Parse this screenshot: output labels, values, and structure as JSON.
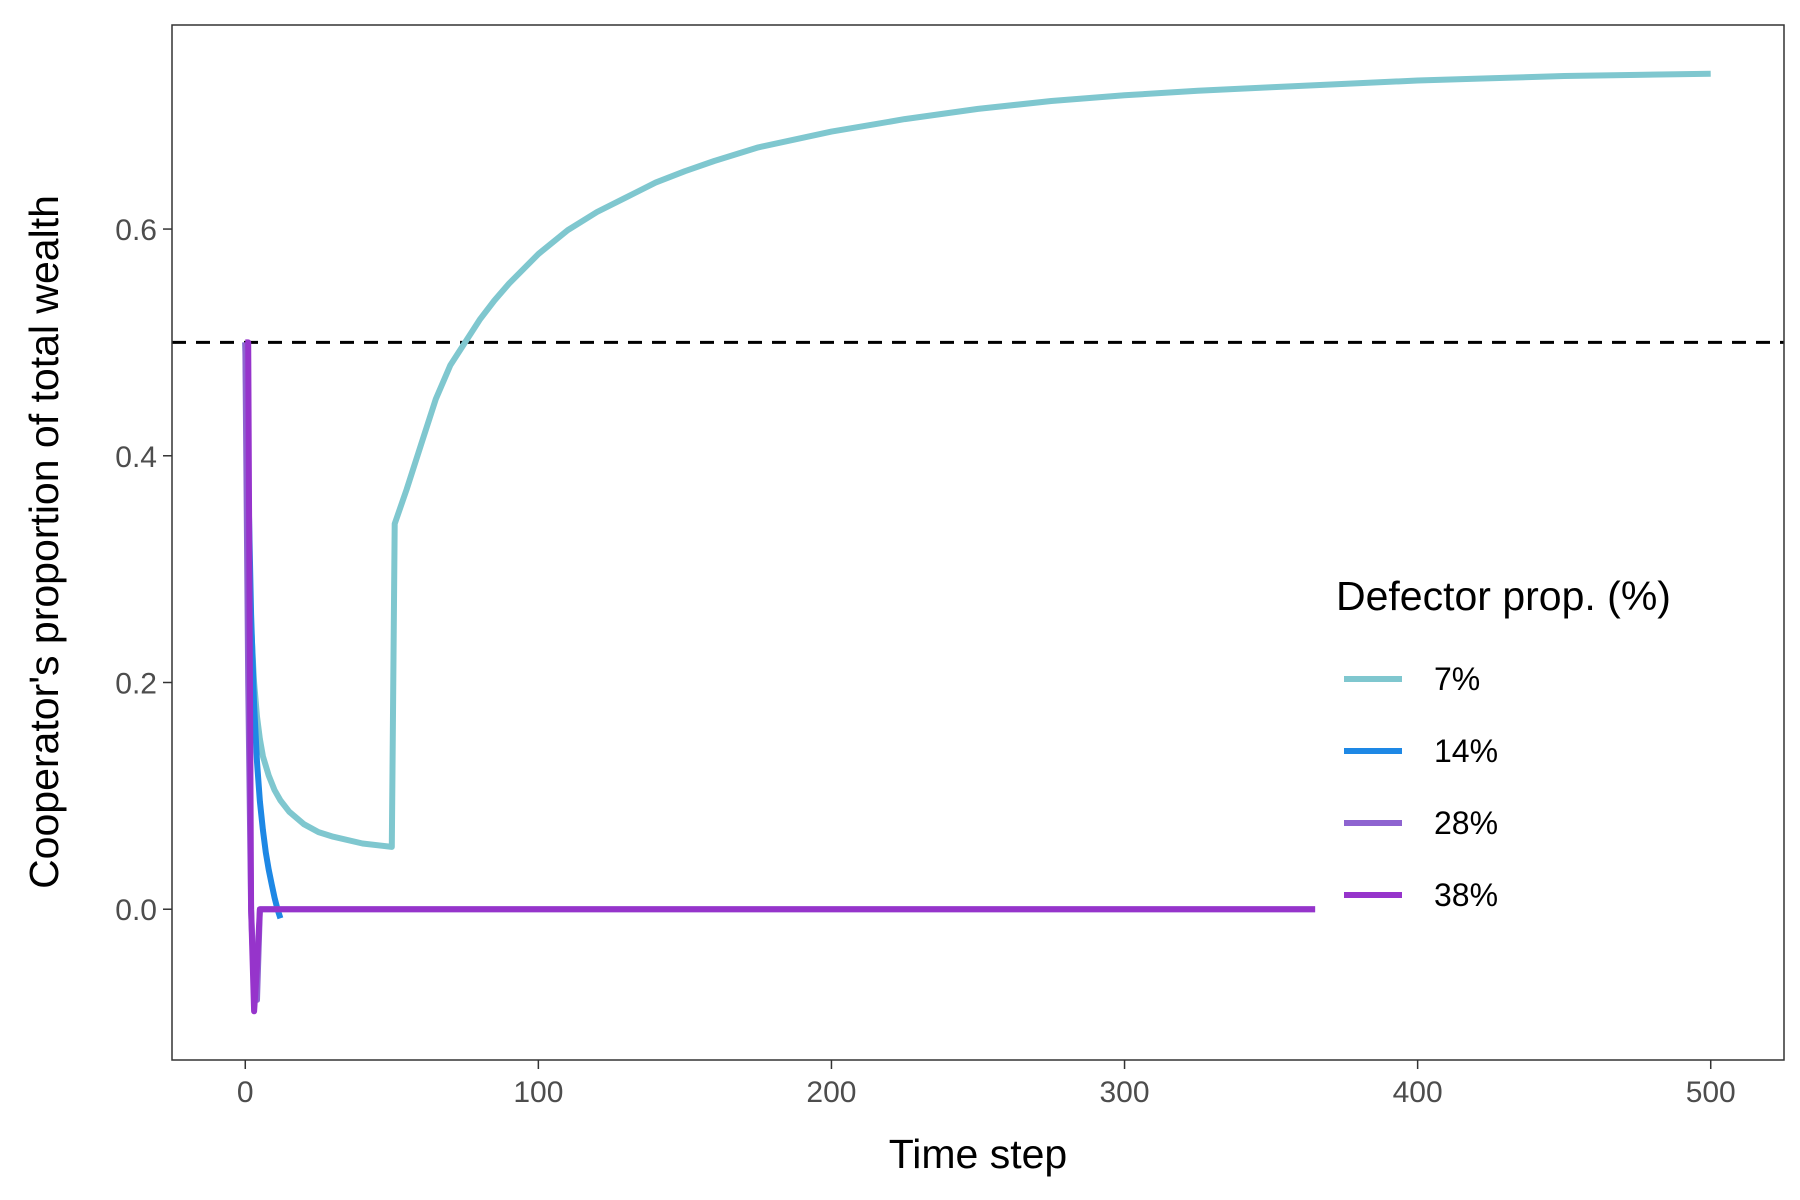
{
  "chart_data": {
    "type": "line",
    "title": "",
    "xlabel": "Time step",
    "ylabel": "Cooperator's proportion of total wealth",
    "xlim": [
      -25,
      525
    ],
    "ylim": [
      -0.133,
      0.78
    ],
    "x_ticks": [
      0,
      100,
      200,
      300,
      400,
      500
    ],
    "x_tick_labels": [
      "0",
      "100",
      "200",
      "300",
      "400",
      "500"
    ],
    "y_ticks": [
      0.0,
      0.2,
      0.4,
      0.6
    ],
    "y_tick_labels": [
      "0.0",
      "0.2",
      "0.4",
      "0.6"
    ],
    "grid": false,
    "reference_line": {
      "y": 0.5,
      "style": "dashed",
      "color": "#000000"
    },
    "legend": {
      "title": "Defector prop. (%)",
      "position": "right"
    },
    "series": [
      {
        "name": "7%",
        "color": "#7FC7CF",
        "x": [
          0,
          1,
          2,
          3,
          4,
          5,
          6,
          8,
          10,
          12,
          15,
          20,
          25,
          30,
          40,
          50,
          51,
          55,
          60,
          65,
          70,
          75,
          80,
          85,
          90,
          100,
          110,
          120,
          130,
          140,
          150,
          160,
          175,
          200,
          225,
          250,
          275,
          300,
          325,
          350,
          375,
          400,
          425,
          450,
          475,
          500
        ],
        "y": [
          0.5,
          0.34,
          0.25,
          0.2,
          0.17,
          0.15,
          0.135,
          0.118,
          0.105,
          0.096,
          0.086,
          0.075,
          0.068,
          0.064,
          0.058,
          0.055,
          0.34,
          0.37,
          0.41,
          0.45,
          0.48,
          0.5,
          0.52,
          0.537,
          0.552,
          0.578,
          0.599,
          0.615,
          0.628,
          0.641,
          0.651,
          0.66,
          0.672,
          0.686,
          0.697,
          0.706,
          0.713,
          0.718,
          0.722,
          0.725,
          0.728,
          0.731,
          0.733,
          0.735,
          0.736,
          0.737
        ]
      },
      {
        "name": "14%",
        "color": "#1E88E5",
        "x": [
          0,
          1,
          2,
          3,
          4,
          5,
          6,
          7,
          8,
          9,
          10,
          11,
          12
        ],
        "y": [
          0.5,
          0.38,
          0.26,
          0.18,
          0.13,
          0.095,
          0.07,
          0.05,
          0.035,
          0.022,
          0.01,
          0.0,
          -0.008
        ]
      },
      {
        "name": "28%",
        "color": "#8E64D0",
        "x": [
          0,
          1,
          2,
          3,
          4,
          5,
          365
        ],
        "y": [
          0.5,
          0.2,
          0.0,
          -0.07,
          -0.08,
          0.0,
          0.0
        ]
      },
      {
        "name": "38%",
        "color": "#9634CB",
        "x": [
          0,
          1,
          2,
          3,
          4,
          5,
          365
        ],
        "y": [
          0.5,
          0.5,
          0.0,
          -0.09,
          -0.05,
          0.0,
          0.0
        ]
      }
    ]
  }
}
